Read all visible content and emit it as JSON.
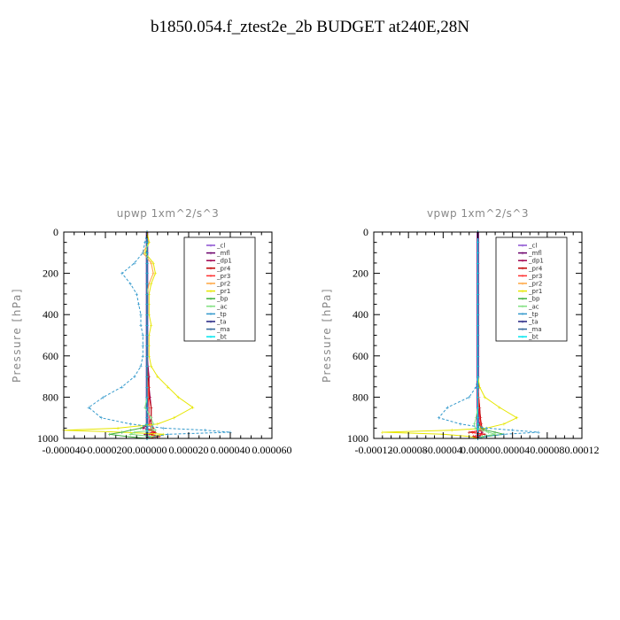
{
  "title": "b1850.054.f_ztest2e_2b  BUDGET at240E,28N",
  "chart_data": [
    {
      "type": "line",
      "title": "upwp   1xm^2/s^3",
      "ylabel": "Pressure [hPa]",
      "xlim": [
        -4e-05,
        6e-05
      ],
      "ylim": [
        1000,
        0
      ],
      "x_ticks": [
        -4e-05,
        -2e-05,
        0.0,
        2e-05,
        4e-05,
        6e-05
      ],
      "x_tick_labels": [
        "-0.000040",
        "-0.000020",
        "0.000000",
        "0.000020",
        "0.000040",
        "0.000060"
      ],
      "y_ticks": [
        0,
        200,
        400,
        600,
        800,
        1000
      ],
      "y_tick_labels": [
        "0",
        "200",
        "400",
        "600",
        "800",
        "1000"
      ],
      "legend_position": "top-right",
      "grid": false,
      "pressure": [
        0,
        50,
        100,
        150,
        200,
        250,
        300,
        350,
        400,
        450,
        500,
        550,
        600,
        650,
        700,
        750,
        800,
        850,
        900,
        930,
        950,
        960,
        970,
        980,
        990,
        1000
      ],
      "series": [
        {
          "name": "_cl",
          "color": "#8a4fd1",
          "values": [
            0,
            0,
            0,
            0,
            0,
            0,
            0,
            0,
            0,
            0,
            0,
            0,
            0,
            0,
            0,
            0,
            0,
            0,
            0,
            0,
            0,
            0,
            0,
            0,
            0,
            0
          ]
        },
        {
          "name": "_mfl",
          "color": "#6b006b",
          "values": [
            0,
            0,
            0,
            0,
            0,
            0,
            0,
            0,
            0,
            0,
            0,
            0,
            0,
            0,
            0,
            0,
            0,
            0,
            0,
            0,
            0,
            0,
            0,
            0,
            0,
            0
          ]
        },
        {
          "name": "_dp1",
          "color": "#a0004f",
          "values": [
            0,
            0,
            0,
            0,
            0,
            0,
            0,
            0,
            0,
            0,
            0,
            0,
            0,
            5e-07,
            1e-06,
            1e-06,
            1.5e-06,
            2e-06,
            2e-06,
            1e-06,
            -2e-06,
            2e-06,
            3e-06,
            -1e-06,
            1e-06,
            0
          ]
        },
        {
          "name": "_pr4",
          "color": "#c00000",
          "values": [
            0,
            0,
            0,
            0,
            0,
            0,
            0,
            0,
            0,
            0,
            0,
            0,
            0,
            0,
            5e-07,
            1e-06,
            1e-06,
            2e-06,
            2e-06,
            2e-06,
            3e-06,
            2e-06,
            4e-06,
            2e-06,
            6e-06,
            0
          ]
        },
        {
          "name": "_pr3",
          "color": "#ff3030",
          "values": [
            0,
            0,
            0,
            0,
            0,
            0,
            0,
            0,
            0,
            0,
            0,
            0,
            0,
            0,
            0,
            5e-07,
            5e-07,
            1e-06,
            1e-06,
            1e-06,
            2e-06,
            1e-06,
            3e-06,
            1e-06,
            4e-06,
            0
          ]
        },
        {
          "name": "_pr2",
          "color": "#ffa640",
          "values": [
            0,
            1e-06,
            -2e-06,
            2e-06,
            3e-06,
            1e-06,
            0,
            0,
            0,
            0,
            0,
            0,
            0,
            0,
            0,
            0,
            0,
            0,
            0,
            0,
            0,
            0,
            0,
            0,
            0,
            0
          ]
        },
        {
          "name": "_pr1",
          "color": "#e6e600",
          "values": [
            0,
            1e-06,
            -1e-06,
            3e-06,
            4e-06,
            2e-06,
            1e-06,
            1e-06,
            1e-06,
            2e-06,
            1e-06,
            1e-06,
            1e-06,
            2e-06,
            5e-06,
            1e-05,
            1.5e-05,
            2.2e-05,
            1.3e-05,
            5e-06,
            -1.4e-05,
            -4e-05,
            -1.2e-05,
            8e-06,
            3e-06,
            0
          ]
        },
        {
          "name": "_bp",
          "color": "#40b040",
          "values": [
            0,
            0,
            0,
            0,
            0,
            0,
            0,
            0,
            0,
            0,
            0,
            0,
            0,
            0,
            0,
            0,
            0,
            0,
            0,
            0,
            -3e-06,
            -8e-06,
            -1.2e-05,
            -1.8e-05,
            -1e-05,
            0
          ]
        },
        {
          "name": "_ac",
          "color": "#80e080",
          "values": [
            0,
            0,
            0,
            0,
            0,
            0,
            0,
            0,
            0,
            0,
            0,
            0,
            0,
            0,
            0,
            0,
            0,
            -1e-06,
            2e-06,
            3e-06,
            2e-06,
            4e-06,
            -6e-06,
            -8e-06,
            2e-06,
            0
          ]
        },
        {
          "name": "_tp",
          "color": "#3399cc",
          "values": [
            0,
            -1e-06,
            -2e-06,
            -6e-06,
            -1.2e-05,
            -8e-06,
            -5e-06,
            -4e-06,
            -3e-06,
            -3e-06,
            -2e-06,
            -2e-06,
            -2e-06,
            -3e-06,
            -6e-06,
            -1.2e-05,
            -2.1e-05,
            -2.8e-05,
            -2.2e-05,
            -8e-06,
            8e-06,
            2.8e-05,
            4e-05,
            1e-05,
            4e-06,
            0
          ]
        },
        {
          "name": "_ta",
          "color": "#202080",
          "values": [
            0,
            0,
            0,
            0,
            0,
            0,
            0,
            0,
            0,
            0,
            0,
            0,
            0,
            0,
            0,
            0,
            0,
            0,
            0,
            0,
            0,
            0,
            0,
            0,
            0,
            0
          ]
        },
        {
          "name": "_ma",
          "color": "#336699",
          "values": [
            0,
            0,
            0,
            0,
            0,
            0,
            0,
            0,
            0,
            0,
            0,
            0,
            0,
            0,
            0,
            0,
            0,
            0,
            0,
            0,
            0,
            0,
            0,
            0,
            0,
            0
          ]
        },
        {
          "name": "_bt",
          "color": "#00e5ee",
          "values": [
            0,
            0,
            0,
            0,
            0,
            0,
            0,
            0,
            0,
            0,
            0,
            0,
            0,
            0,
            0,
            0,
            0,
            0,
            0,
            0,
            0,
            0,
            0,
            0,
            0,
            0
          ]
        }
      ]
    },
    {
      "type": "line",
      "title": "vpwp   1xm^2/s^3",
      "ylabel": "Pressure [hPa]",
      "xlim": [
        -0.00012,
        0.00012
      ],
      "ylim": [
        1000,
        0
      ],
      "x_ticks": [
        -0.00012,
        -8e-05,
        -4e-05,
        0.0,
        4e-05,
        8e-05,
        0.00012
      ],
      "x_tick_labels": [
        "-0.00012",
        "-0.00008",
        "-0.00004",
        "0.00000",
        "0.00004",
        "0.00008",
        "0.00012"
      ],
      "y_ticks": [
        0,
        200,
        400,
        600,
        800,
        1000
      ],
      "y_tick_labels": [
        "0",
        "200",
        "400",
        "600",
        "800",
        "1000"
      ],
      "legend_position": "top-right",
      "grid": false,
      "pressure": [
        0,
        50,
        100,
        150,
        200,
        250,
        300,
        350,
        400,
        450,
        500,
        550,
        600,
        650,
        700,
        750,
        800,
        850,
        900,
        930,
        950,
        960,
        970,
        980,
        990,
        1000
      ],
      "series": [
        {
          "name": "_cl",
          "color": "#8a4fd1",
          "values": [
            0,
            0,
            0,
            0,
            0,
            0,
            0,
            0,
            0,
            0,
            0,
            0,
            0,
            0,
            0,
            0,
            0,
            0,
            0,
            0,
            0,
            0,
            0,
            0,
            0,
            0
          ]
        },
        {
          "name": "_mfl",
          "color": "#6b006b",
          "values": [
            0,
            0,
            0,
            0,
            0,
            0,
            0,
            0,
            0,
            0,
            0,
            0,
            0,
            0,
            0,
            0,
            0,
            0,
            0,
            0,
            0,
            0,
            0,
            0,
            0,
            0
          ]
        },
        {
          "name": "_dp1",
          "color": "#a0004f",
          "values": [
            0,
            0,
            0,
            0,
            0,
            0,
            0,
            0,
            0,
            0,
            0,
            0,
            0,
            0,
            0,
            0,
            1e-06,
            2e-06,
            3e-06,
            2e-06,
            4e-06,
            3e-06,
            5e-06,
            3e-06,
            2e-06,
            0
          ]
        },
        {
          "name": "_pr4",
          "color": "#c00000",
          "values": [
            0,
            0,
            0,
            0,
            0,
            0,
            0,
            0,
            0,
            0,
            0,
            0,
            0,
            0,
            0,
            0,
            1e-06,
            2e-06,
            3e-06,
            4e-06,
            5e-06,
            6e-06,
            -1e-05,
            8e-06,
            -5e-06,
            0
          ]
        },
        {
          "name": "_pr3",
          "color": "#ff3030",
          "values": [
            0,
            0,
            0,
            0,
            0,
            0,
            0,
            0,
            0,
            0,
            0,
            0,
            0,
            0,
            0,
            0,
            1e-06,
            1e-06,
            2e-06,
            3e-06,
            3e-06,
            4e-06,
            -6e-06,
            5e-06,
            -3e-06,
            0
          ]
        },
        {
          "name": "_pr2",
          "color": "#ffa640",
          "values": [
            0,
            0,
            0,
            0,
            0,
            0,
            0,
            0,
            0,
            0,
            0,
            0,
            0,
            0,
            0,
            0,
            0,
            0,
            0,
            0,
            0,
            0,
            0,
            0,
            0,
            0
          ]
        },
        {
          "name": "_pr1",
          "color": "#e6e600",
          "values": [
            0,
            0,
            0,
            0,
            0,
            0,
            0,
            0,
            0,
            0,
            0,
            0,
            0,
            0,
            0,
            2e-06,
            8e-06,
            2.5e-05,
            4.5e-05,
            3e-05,
            1e-05,
            -3e-05,
            -0.00011,
            -4e-05,
            -1e-05,
            0
          ]
        },
        {
          "name": "_bp",
          "color": "#40b040",
          "values": [
            0,
            0,
            0,
            0,
            0,
            0,
            0,
            0,
            0,
            0,
            0,
            0,
            0,
            0,
            0,
            0,
            0,
            0,
            0,
            0,
            5e-06,
            1e-05,
            2e-05,
            3e-05,
            1e-05,
            0
          ]
        },
        {
          "name": "_ac",
          "color": "#80e080",
          "values": [
            0,
            0,
            0,
            0,
            0,
            0,
            0,
            0,
            0,
            0,
            0,
            0,
            0,
            0,
            0,
            0,
            0,
            0,
            -2e-06,
            -4e-06,
            -3e-06,
            5e-06,
            1.2e-05,
            2e-05,
            5e-06,
            0
          ]
        },
        {
          "name": "_tp",
          "color": "#3399cc",
          "values": [
            0,
            0,
            0,
            0,
            0,
            0,
            0,
            0,
            0,
            0,
            0,
            0,
            0,
            0,
            0,
            -2e-06,
            -1e-05,
            -3.5e-05,
            -4.5e-05,
            -2e-05,
            1e-05,
            4e-05,
            7e-05,
            3e-05,
            1e-05,
            0
          ]
        },
        {
          "name": "_ta",
          "color": "#202080",
          "values": [
            0,
            0,
            0,
            0,
            0,
            0,
            0,
            0,
            0,
            0,
            0,
            0,
            0,
            0,
            0,
            0,
            0,
            0,
            0,
            0,
            0,
            0,
            0,
            0,
            0,
            0
          ]
        },
        {
          "name": "_ma",
          "color": "#336699",
          "values": [
            0,
            0,
            0,
            0,
            0,
            0,
            0,
            0,
            0,
            0,
            0,
            0,
            0,
            0,
            0,
            0,
            0,
            0,
            0,
            0,
            0,
            0,
            0,
            0,
            0,
            0
          ]
        },
        {
          "name": "_bt",
          "color": "#00e5ee",
          "values": [
            0,
            0,
            0,
            0,
            0,
            0,
            0,
            0,
            0,
            0,
            0,
            0,
            0,
            0,
            0,
            0,
            0,
            0,
            0,
            0,
            0,
            0,
            0,
            0,
            0,
            0
          ]
        }
      ]
    }
  ]
}
